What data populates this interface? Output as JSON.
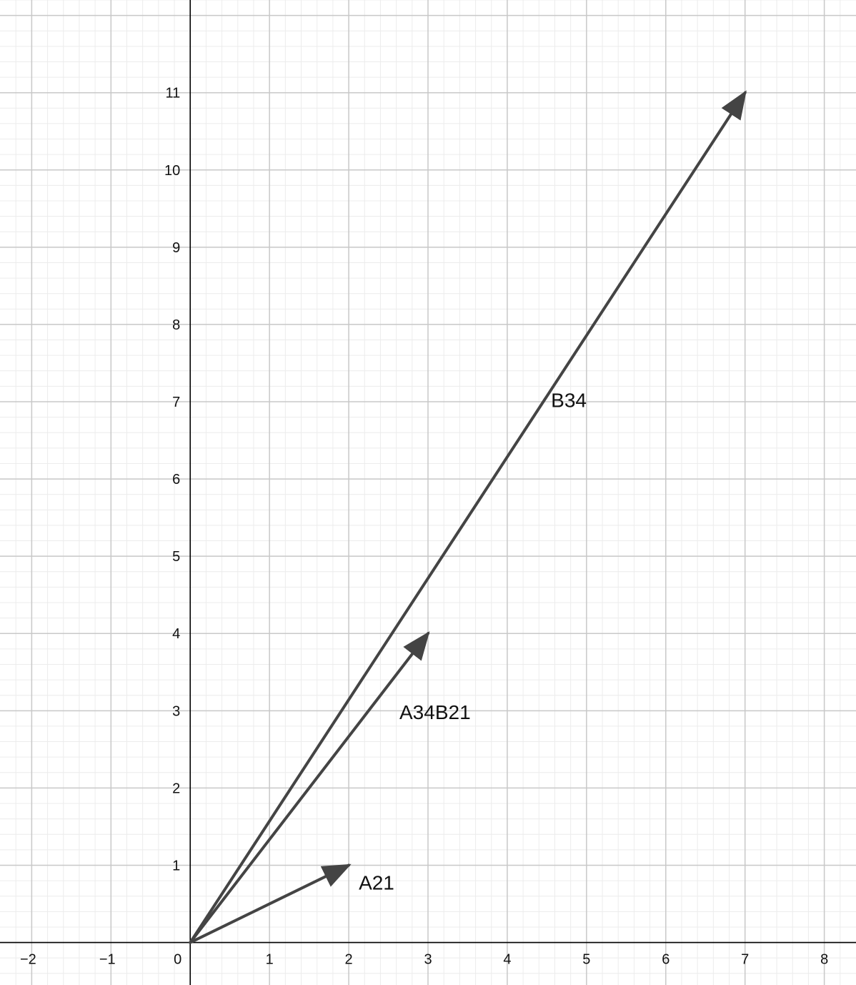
{
  "chart_data": {
    "type": "vector_plot",
    "x_ticks": [
      "−2",
      "−1",
      "0",
      "1",
      "2",
      "3",
      "4",
      "5",
      "6",
      "7",
      "8"
    ],
    "y_ticks": [
      "1",
      "2",
      "3",
      "4",
      "5",
      "6",
      "7",
      "8",
      "9",
      "10",
      "11"
    ],
    "xlim": [
      -2.4,
      8.4
    ],
    "ylim": [
      -0.55,
      12.2
    ],
    "grid": true,
    "minor_grid_divisions": 5,
    "colors": {
      "vector": "#444444",
      "axis": "#000000",
      "major_grid": "#c8c8c8",
      "minor_grid": "#ececec"
    },
    "vectors": [
      {
        "name": "A21",
        "from": [
          0,
          0
        ],
        "to": [
          2,
          1
        ]
      },
      {
        "name": "A34B21",
        "from": [
          0,
          0
        ],
        "to": [
          3,
          4
        ]
      },
      {
        "name": "B34",
        "from": [
          0,
          0
        ],
        "to": [
          7,
          11
        ]
      }
    ]
  }
}
